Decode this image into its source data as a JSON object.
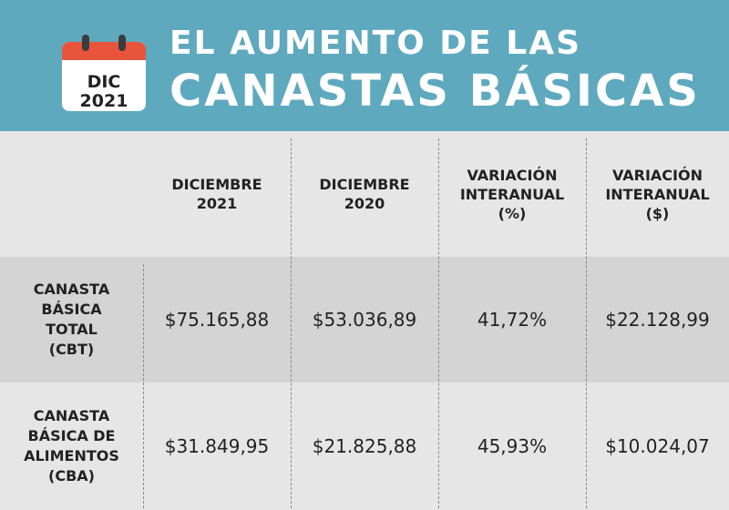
{
  "header": {
    "calendar_month": "DIC",
    "calendar_year": "2021",
    "title_line1": "EL AUMENTO DE LAS",
    "title_line2": "CANASTAS BÁSICAS"
  },
  "colors": {
    "header_bg": "#5fa9be",
    "calendar_accent": "#e8543c",
    "row_shaded": "#d4d4d4",
    "row_light": "#e6e6e6"
  },
  "chart_data": {
    "type": "table",
    "columns": [
      "",
      "DICIEMBRE\n2021",
      "DICIEMBRE\n2020",
      "VARIACIÓN\nINTERANUAL\n(%)",
      "VARIACIÓN\nINTERANUAL\n($)"
    ],
    "rows": [
      {
        "label": "CANASTA\nBÁSICA\nTOTAL\n(CBT)",
        "values": [
          "$75.165,88",
          "$53.036,89",
          "41,72%",
          "$22.128,99"
        ]
      },
      {
        "label": "CANASTA\nBÁSICA DE\nALIMENTOS\n(CBA)",
        "values": [
          "$31.849,95",
          "$21.825,88",
          "45,93%",
          "$10.024,07"
        ]
      }
    ]
  }
}
